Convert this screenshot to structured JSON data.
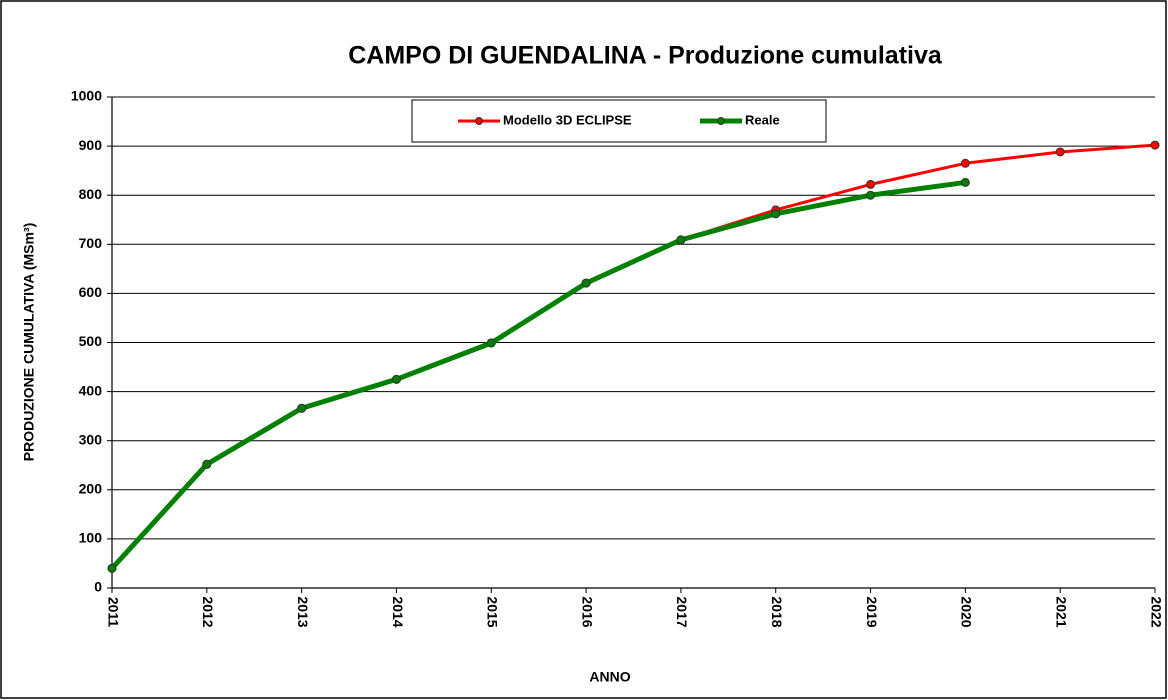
{
  "chart_data": {
    "type": "line",
    "title": "CAMPO DI GUENDALINA - Produzione cumulativa",
    "xlabel": "ANNO",
    "ylabel": "PRODUZIONE CUMULATIVA (MSm³)",
    "x": [
      2011,
      2012,
      2013,
      2014,
      2015,
      2016,
      2017,
      2018,
      2019,
      2020,
      2021,
      2022
    ],
    "series": [
      {
        "name": "Modello 3D ECLIPSE",
        "color": "#ff0000",
        "values": [
          40,
          252,
          366,
          425,
          499,
          621,
          709,
          770,
          822,
          865,
          888,
          902
        ]
      },
      {
        "name": "Reale",
        "color": "#008000",
        "values": [
          40,
          252,
          366,
          425,
          499,
          621,
          709,
          762,
          800,
          826,
          null,
          null
        ]
      }
    ],
    "xlim": [
      2011,
      2022
    ],
    "xticks": [
      2011,
      2012,
      2013,
      2014,
      2015,
      2016,
      2017,
      2018,
      2019,
      2020,
      2021,
      2022
    ],
    "ylim": [
      0,
      1000
    ],
    "yticks": [
      0,
      100,
      200,
      300,
      400,
      500,
      600,
      700,
      800,
      900,
      1000
    ],
    "grid": true,
    "legend": "top"
  }
}
